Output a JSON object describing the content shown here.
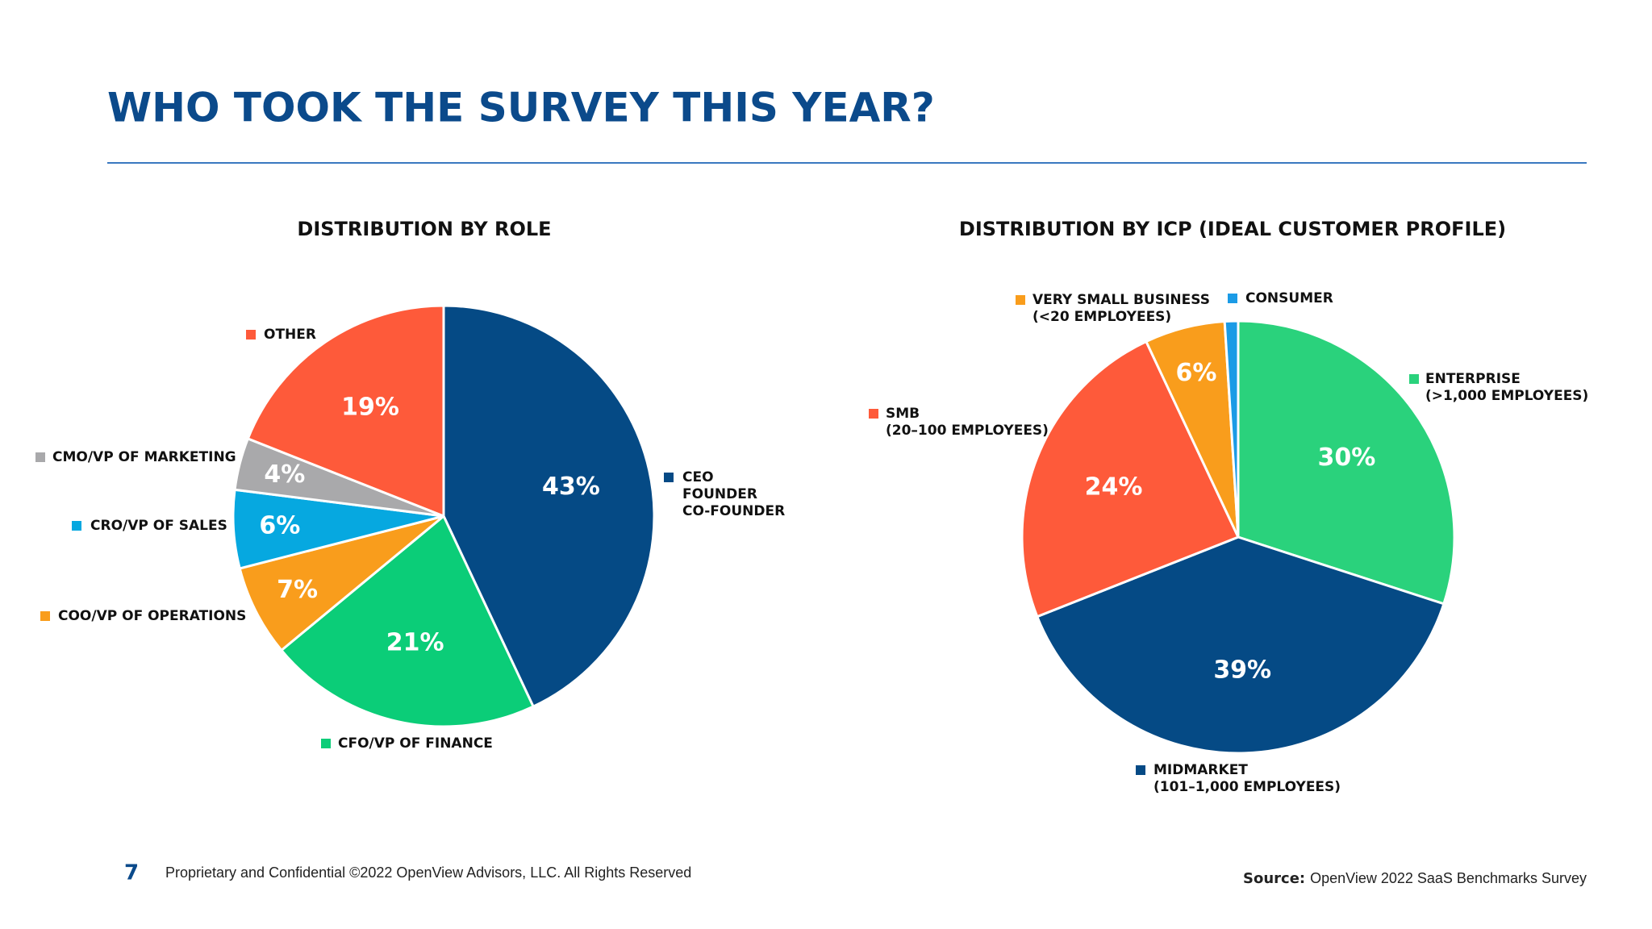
{
  "page": {
    "title": "WHO TOOK THE SURVEY THIS YEAR?",
    "page_number": "7",
    "footer": "Proprietary and Confidential ©2022 OpenView Advisors, LLC. All Rights Reserved",
    "source_label": "Source:",
    "source": "OpenView 2022 SaaS Benchmarks Survey"
  },
  "chart_data": [
    {
      "type": "pie",
      "title": "DISTRIBUTION BY ROLE",
      "categories": [
        [
          "CEO",
          "FOUNDER",
          "CO-FOUNDER"
        ],
        [
          "CFO/VP OF FINANCE"
        ],
        [
          "COO/VP OF OPERATIONS"
        ],
        [
          "CRO/VP OF SALES"
        ],
        [
          "CMO/VP OF MARKETING"
        ],
        [
          "OTHER"
        ]
      ],
      "values": [
        43,
        21,
        7,
        6,
        4,
        19
      ],
      "value_labels": [
        "43%",
        "21%",
        "7%",
        "6%",
        "4%",
        "19%"
      ],
      "colors": [
        "#054a85",
        "#0bcd78",
        "#f99d1c",
        "#06a8e0",
        "#a9a9ab",
        "#fe5a3a"
      ]
    },
    {
      "type": "pie",
      "title": "DISTRIBUTION BY ICP (IDEAL CUSTOMER PROFILE)",
      "categories": [
        [
          "ENTERPRISE",
          "(>1,000 EMPLOYEES)"
        ],
        [
          "MIDMARKET",
          "(101–1,000 EMPLOYEES)"
        ],
        [
          "SMB",
          "(20–100 EMPLOYEES)"
        ],
        [
          "VERY SMALL BUSINESS",
          "(<20 EMPLOYEES)"
        ],
        [
          "CONSUMER"
        ]
      ],
      "values": [
        30,
        39,
        24,
        6,
        1
      ],
      "value_labels": [
        "30%",
        "39%",
        "24%",
        "6%",
        null
      ],
      "colors": [
        "#2ad27c",
        "#054a85",
        "#fe5a3a",
        "#f99d1c",
        "#1b9be6"
      ]
    }
  ]
}
